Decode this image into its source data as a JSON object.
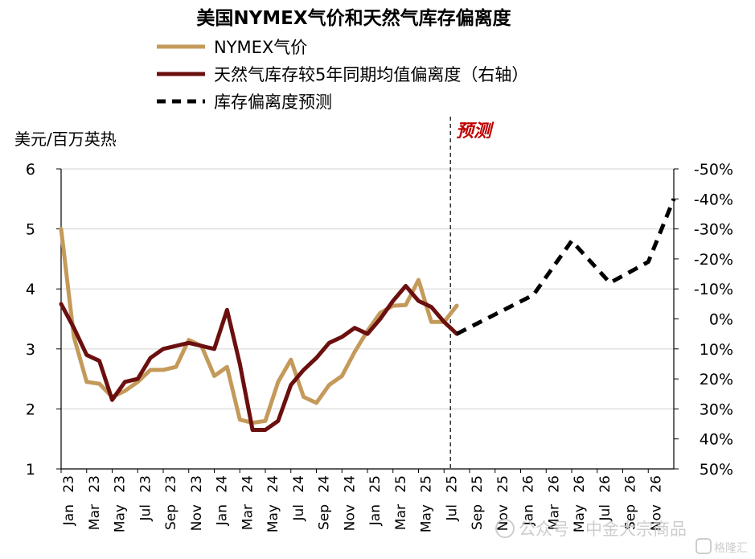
{
  "chart_data": {
    "type": "line",
    "title": "美国NYMEX气价和天然气库存偏离度",
    "ylabel": "美元/百万英热",
    "forecast_label": "预测",
    "left_ylim": [
      1,
      6
    ],
    "left_ticks": [
      "1",
      "2",
      "3",
      "4",
      "5",
      "6"
    ],
    "left_tick_values": [
      1,
      2,
      3,
      4,
      5,
      6
    ],
    "right_ylim": [
      -50,
      50
    ],
    "right_inverted": true,
    "right_ticks": [
      "-50%",
      "-40%",
      "-30%",
      "-20%",
      "-10%",
      "0%",
      "10%",
      "20%",
      "30%",
      "40%",
      "50%"
    ],
    "right_tick_values": [
      -50,
      -40,
      -30,
      -20,
      -10,
      0,
      10,
      20,
      30,
      40,
      50
    ],
    "x_ticks": [
      {
        "month": "Jan",
        "year": "23"
      },
      {
        "month": "Mar",
        "year": "23"
      },
      {
        "month": "May",
        "year": "23"
      },
      {
        "month": "Jul",
        "year": "23"
      },
      {
        "month": "Sep",
        "year": "23"
      },
      {
        "month": "Nov",
        "year": "23"
      },
      {
        "month": "Jan",
        "year": "24"
      },
      {
        "month": "Mar",
        "year": "24"
      },
      {
        "month": "May",
        "year": "24"
      },
      {
        "month": "Jul",
        "year": "24"
      },
      {
        "month": "Sep",
        "year": "24"
      },
      {
        "month": "Nov",
        "year": "24"
      },
      {
        "month": "Jan",
        "year": "25"
      },
      {
        "month": "Mar",
        "year": "25"
      },
      {
        "month": "May",
        "year": "25"
      },
      {
        "month": "Jul",
        "year": "25"
      },
      {
        "month": "Sep",
        "year": "25"
      },
      {
        "month": "Nov",
        "year": "25"
      },
      {
        "month": "Jan",
        "year": "26"
      },
      {
        "month": "Mar",
        "year": "26"
      },
      {
        "month": "May",
        "year": "26"
      },
      {
        "month": "Jul",
        "year": "26"
      },
      {
        "month": "Sep",
        "year": "26"
      },
      {
        "month": "Nov",
        "year": "26"
      }
    ],
    "x_tick_months": [
      0,
      2,
      4,
      6,
      8,
      10,
      12,
      14,
      16,
      18,
      20,
      22,
      24,
      26,
      28,
      30,
      32,
      34,
      36,
      38,
      40,
      42,
      44,
      46
    ],
    "forecast_start_month": 30.5,
    "series": [
      {
        "name": "NYMEX气价",
        "axis": "left",
        "color": "#c49a5a",
        "style": "solid",
        "x": [
          0,
          1,
          2,
          3,
          4,
          5,
          6,
          7,
          8,
          9,
          10,
          11,
          12,
          13,
          14,
          15,
          16,
          17,
          18,
          19,
          20,
          21,
          22,
          23,
          24,
          25,
          26,
          27,
          28,
          29,
          30,
          31
        ],
        "values": [
          5.0,
          3.2,
          2.45,
          2.42,
          2.2,
          2.3,
          2.45,
          2.65,
          2.65,
          2.7,
          3.15,
          3.05,
          2.55,
          2.7,
          1.82,
          1.77,
          1.8,
          2.45,
          2.82,
          2.2,
          2.1,
          2.4,
          2.55,
          2.95,
          3.3,
          3.6,
          3.72,
          3.73,
          4.15,
          3.45,
          3.45,
          3.72
        ]
      },
      {
        "name": "天然气库存较5年同期均值偏离度（右轴）",
        "axis": "right",
        "color": "#6b0f0f",
        "style": "solid",
        "x": [
          0,
          1,
          2,
          3,
          4,
          5,
          6,
          7,
          8,
          9,
          10,
          11,
          12,
          13,
          14,
          15,
          16,
          17,
          18,
          19,
          20,
          21,
          22,
          23,
          24,
          25,
          26,
          27,
          28,
          29,
          30,
          31
        ],
        "values": [
          -5,
          3,
          12,
          14,
          27,
          21,
          20,
          13,
          10,
          9,
          8,
          9,
          10,
          -3,
          15,
          37,
          37,
          34,
          22,
          17,
          13,
          8,
          6,
          3,
          5,
          0,
          -6,
          -11,
          -6,
          -4,
          1,
          5
        ]
      },
      {
        "name": "库存偏离度预测",
        "axis": "right",
        "color": "#000000",
        "style": "dashed",
        "x": [
          31,
          37,
          40,
          43,
          46,
          48
        ],
        "values": [
          5,
          -8,
          -26,
          -12,
          -19,
          -40
        ]
      }
    ],
    "grid": true,
    "legend_position": "top-left"
  },
  "watermark": {
    "source": "公众号 · 中金大宗商品",
    "logo": "格隆汇"
  }
}
